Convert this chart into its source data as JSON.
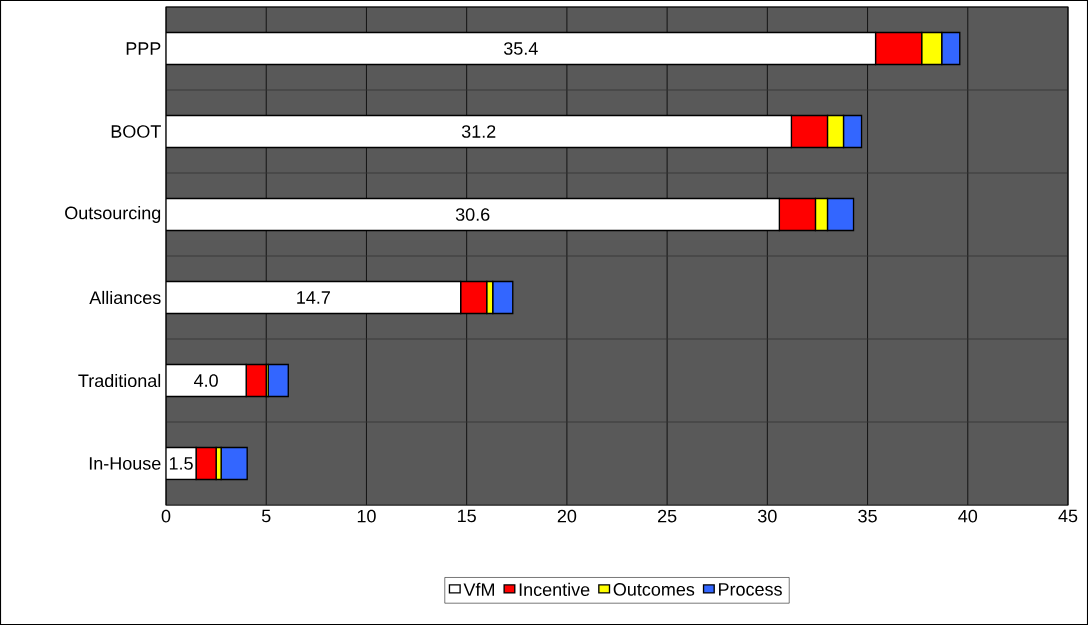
{
  "chart_data": {
    "type": "bar",
    "orientation": "horizontal",
    "stacked": true,
    "categories": [
      "PPP",
      "BOOT",
      "Outsourcing",
      "Alliances",
      "Traditional",
      "In-House"
    ],
    "series": [
      {
        "name": "VfM",
        "color": "#ffffff",
        "values": [
          35.4,
          31.2,
          30.6,
          14.7,
          4.0,
          1.5
        ],
        "value_labels": [
          "35.4",
          "31.2",
          "30.6",
          "14.7",
          "4.0",
          "1.5"
        ]
      },
      {
        "name": "Incentive",
        "color": "#ff0000",
        "values": [
          2.3,
          1.8,
          1.8,
          1.3,
          1.0,
          1.0
        ]
      },
      {
        "name": "Outcomes",
        "color": "#ffff00",
        "values": [
          1.0,
          0.8,
          0.6,
          0.3,
          0.1,
          0.25
        ]
      },
      {
        "name": "Process",
        "color": "#3366ff",
        "values": [
          0.9,
          0.9,
          1.3,
          1.0,
          1.0,
          1.3
        ]
      }
    ],
    "xlim": [
      0,
      45
    ],
    "xticks": [
      0,
      5,
      10,
      15,
      20,
      25,
      30,
      35,
      40,
      45
    ],
    "grid": true,
    "legend": "bottom"
  }
}
